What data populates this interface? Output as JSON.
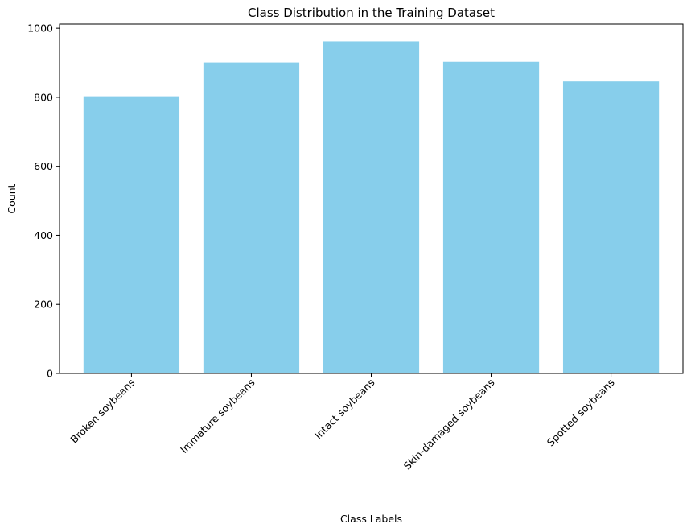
{
  "chart_data": {
    "type": "bar",
    "title": "Class Distribution in the Training Dataset",
    "xlabel": "Class Labels",
    "ylabel": "Count",
    "categories": [
      "Broken soybeans",
      "Immature soybeans",
      "Intact soybeans",
      "Skin-damaged soybeans",
      "Spotted soybeans"
    ],
    "values": [
      803,
      901,
      962,
      903,
      846
    ],
    "ylim": [
      0,
      1012
    ],
    "yticks": [
      0,
      200,
      400,
      600,
      800,
      1000
    ],
    "bar_color": "#87CEEB",
    "grid": false,
    "legend": "none"
  }
}
